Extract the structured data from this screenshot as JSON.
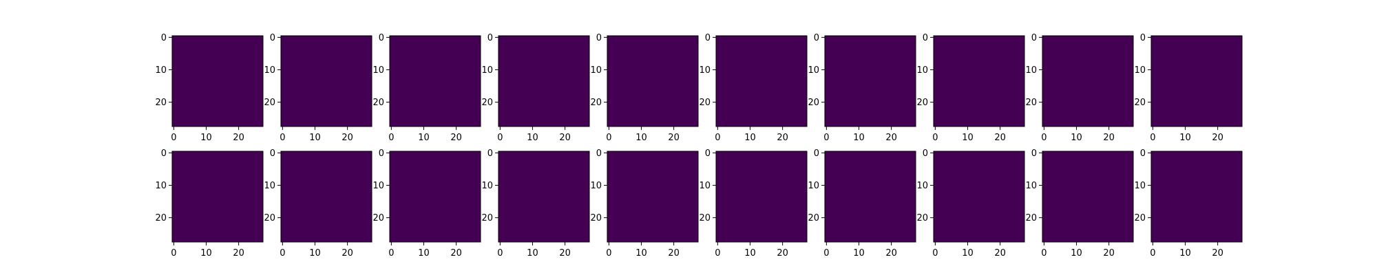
{
  "figure": {
    "rows": 2,
    "cols": 10,
    "row_titles": [
      "",
      ""
    ],
    "panel_titles": []
  },
  "chart_data": {
    "type": "heatmap",
    "title": "",
    "xlabel": "",
    "ylabel": "",
    "colormap": "viridis",
    "xlim": [
      0,
      28
    ],
    "ylim": [
      28,
      0
    ],
    "x_ticks": [
      0,
      10,
      20
    ],
    "y_ticks": [
      0,
      10,
      20
    ],
    "x_tick_labels": [
      "0",
      "10",
      "20"
    ],
    "y_tick_labels": [
      "0",
      "10",
      "20"
    ],
    "image_size": [
      28,
      28
    ],
    "rows": [
      {
        "panels": 10
      },
      {
        "panels": 10
      }
    ]
  },
  "colors": {
    "background": "#440154",
    "mid": "#21918c",
    "bright": "#fde725",
    "light": "#5ec962"
  }
}
